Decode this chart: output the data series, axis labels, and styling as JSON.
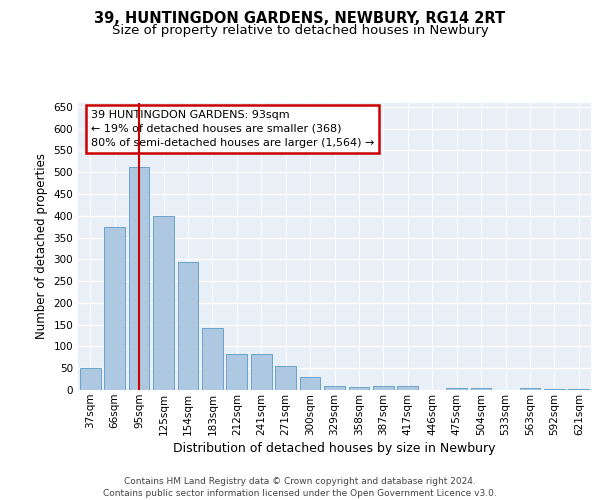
{
  "title_line1": "39, HUNTINGDON GARDENS, NEWBURY, RG14 2RT",
  "title_line2": "Size of property relative to detached houses in Newbury",
  "xlabel": "Distribution of detached houses by size in Newbury",
  "ylabel": "Number of detached properties",
  "bar_color": "#adc8e0",
  "bar_edge_color": "#5a9bc5",
  "highlight_color": "#cc0000",
  "categories": [
    "37sqm",
    "66sqm",
    "95sqm",
    "125sqm",
    "154sqm",
    "183sqm",
    "212sqm",
    "241sqm",
    "271sqm",
    "300sqm",
    "329sqm",
    "358sqm",
    "387sqm",
    "417sqm",
    "446sqm",
    "475sqm",
    "504sqm",
    "533sqm",
    "563sqm",
    "592sqm",
    "621sqm"
  ],
  "values": [
    50,
    375,
    512,
    400,
    293,
    142,
    83,
    83,
    55,
    30,
    10,
    8,
    10,
    10,
    0,
    4,
    4,
    0,
    4,
    2,
    2
  ],
  "highlight_index": 2,
  "ylim_max": 660,
  "ytick_step": 50,
  "annotation_title": "39 HUNTINGDON GARDENS: 93sqm",
  "annotation_line2": "← 19% of detached houses are smaller (368)",
  "annotation_line3": "80% of semi-detached houses are larger (1,564) →",
  "footer_line1": "Contains HM Land Registry data © Crown copyright and database right 2024.",
  "footer_line2": "Contains public sector information licensed under the Open Government Licence v3.0.",
  "bg_color": "#e8eff6",
  "grid_color": "#ffffff",
  "title_fontsize": 10.5,
  "subtitle_fontsize": 9.5,
  "ylabel_fontsize": 8.5,
  "xlabel_fontsize": 9,
  "tick_fontsize": 7.5,
  "ann_fontsize": 8,
  "footer_fontsize": 6.5
}
